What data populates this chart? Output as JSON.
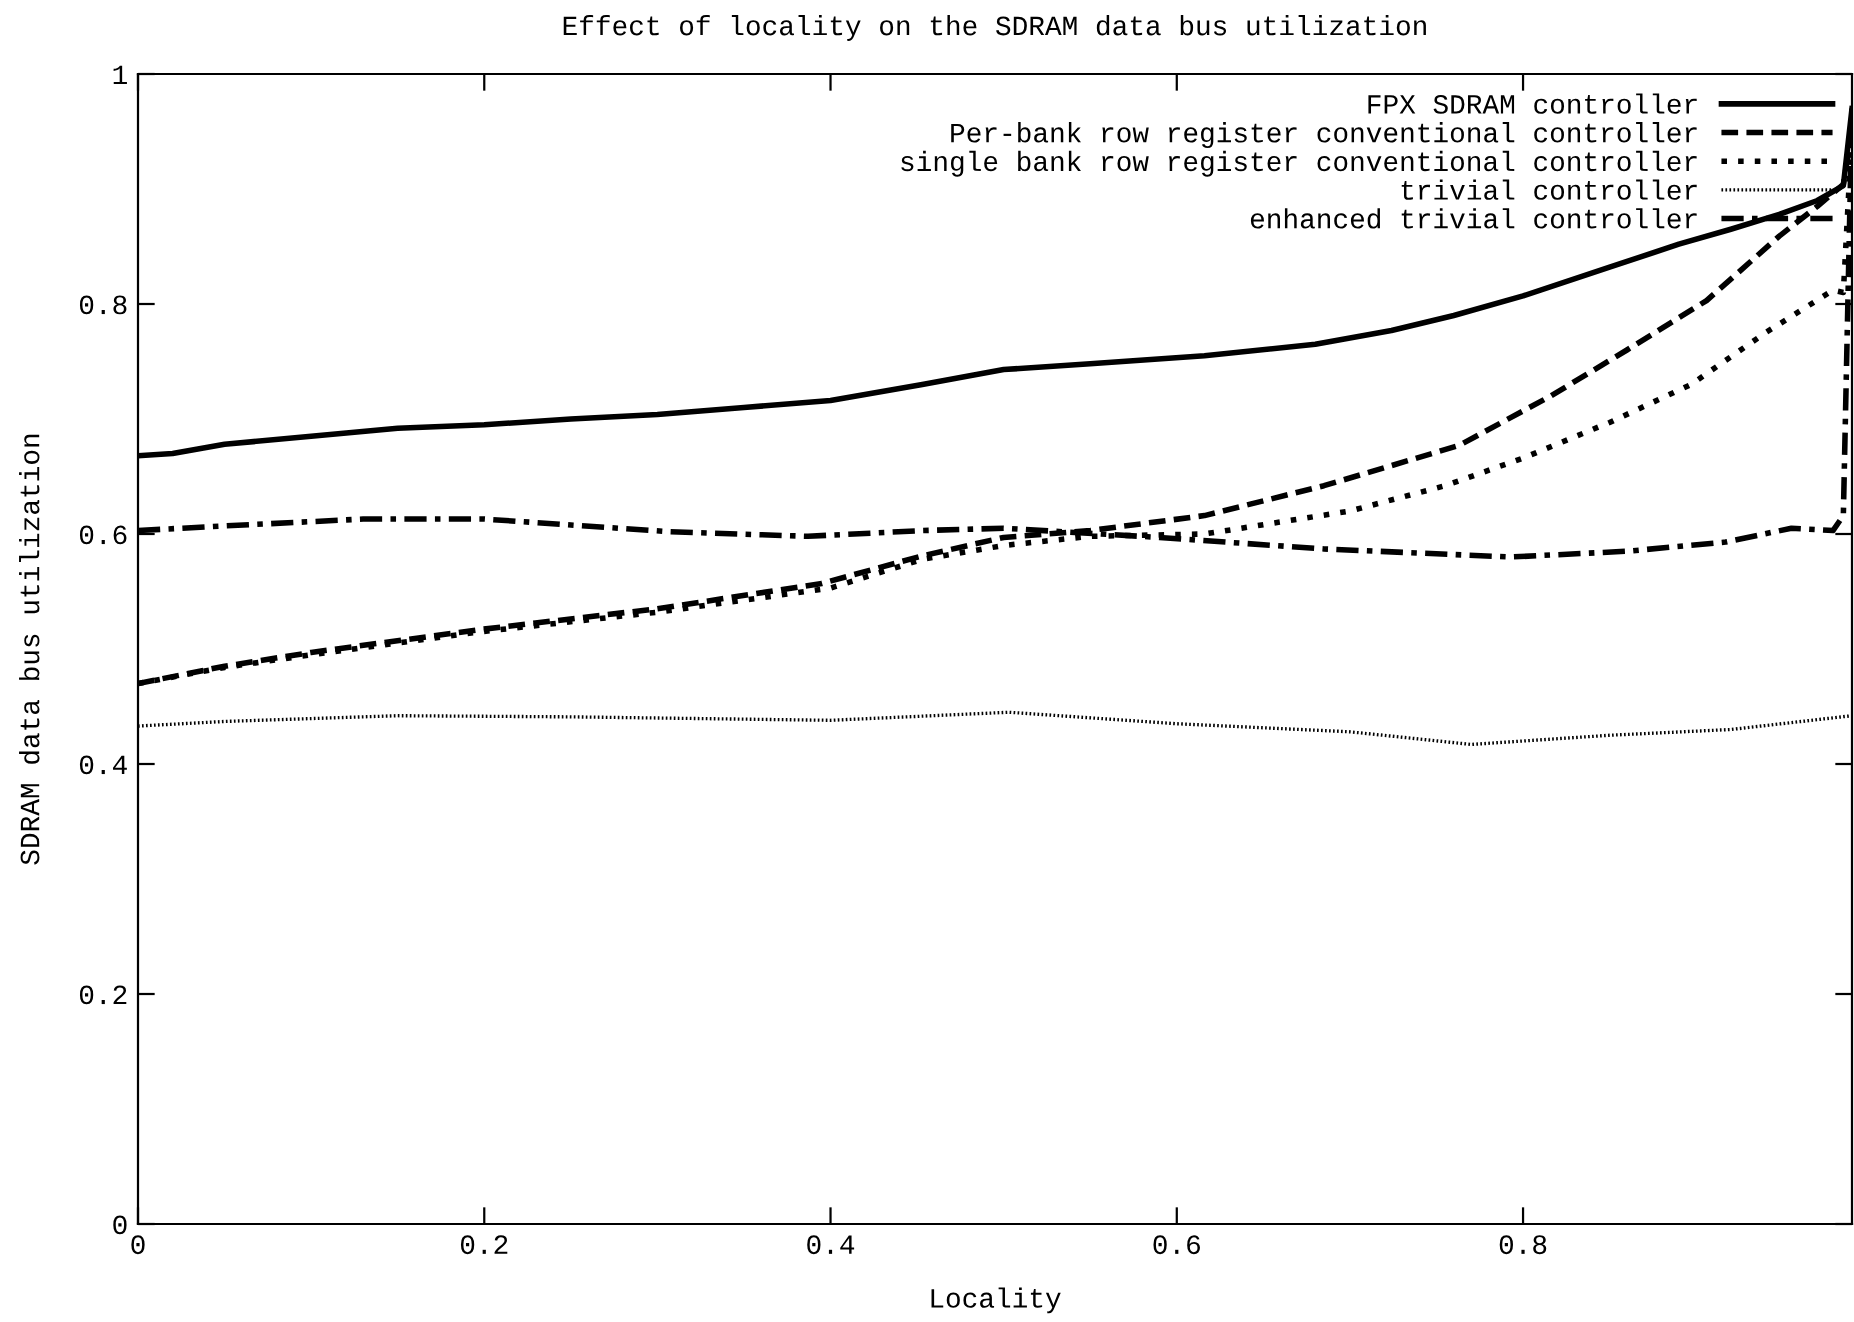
{
  "chart_data": {
    "type": "line",
    "title": "Effect of locality on the SDRAM data bus utilization",
    "xlabel": "Locality",
    "ylabel": "SDRAM data bus utilization",
    "xlim": [
      0,
      0.99
    ],
    "xticks": [
      0,
      0.2,
      0.4,
      0.6,
      0.8
    ],
    "ylim": [
      0,
      1
    ],
    "yticks": [
      0,
      0.2,
      0.4,
      0.6,
      0.8,
      1
    ],
    "grid": false,
    "legend": "top right",
    "marker": "none",
    "series": [
      {
        "name": "FPX SDRAM controller",
        "color": "#000000",
        "line_style": "solid",
        "x": [
          0,
          0.02,
          0.05,
          0.1,
          0.15,
          0.2,
          0.25,
          0.3,
          0.35,
          0.4,
          0.453,
          0.5,
          0.55,
          0.616,
          0.68,
          0.724,
          0.76,
          0.8,
          0.85,
          0.89,
          0.92,
          0.948,
          0.97,
          0.985,
          0.99
        ],
        "values": [
          0.668,
          0.67,
          0.678,
          0.685,
          0.692,
          0.695,
          0.7,
          0.704,
          0.71,
          0.716,
          0.73,
          0.743,
          0.748,
          0.755,
          0.765,
          0.777,
          0.79,
          0.807,
          0.832,
          0.852,
          0.865,
          0.878,
          0.89,
          0.903,
          0.97
        ]
      },
      {
        "name": "Per-bank row register conventional controller",
        "color": "#000000",
        "line_style": "dashed",
        "x": [
          0,
          0.05,
          0.1,
          0.198,
          0.3,
          0.395,
          0.453,
          0.5,
          0.55,
          0.616,
          0.685,
          0.763,
          0.816,
          0.86,
          0.906,
          0.948,
          0.97,
          0.985,
          0.99
        ],
        "values": [
          0.47,
          0.485,
          0.497,
          0.517,
          0.535,
          0.557,
          0.581,
          0.597,
          0.603,
          0.616,
          0.642,
          0.677,
          0.72,
          0.76,
          0.803,
          0.859,
          0.885,
          0.904,
          0.95
        ]
      },
      {
        "name": "single bank row register conventional controller",
        "color": "#000000",
        "line_style": "dotted",
        "x": [
          0,
          0.05,
          0.1,
          0.198,
          0.3,
          0.4,
          0.453,
          0.5,
          0.55,
          0.616,
          0.7,
          0.755,
          0.8,
          0.85,
          0.897,
          0.94,
          0.979,
          0.985,
          0.99
        ],
        "values": [
          0.47,
          0.484,
          0.495,
          0.515,
          0.532,
          0.553,
          0.578,
          0.59,
          0.598,
          0.6,
          0.62,
          0.642,
          0.666,
          0.697,
          0.73,
          0.775,
          0.812,
          0.81,
          0.95
        ]
      },
      {
        "name": "trivial controller",
        "color": "#000000",
        "line_style": "finedotted",
        "x": [
          0,
          0.05,
          0.15,
          0.25,
          0.4,
          0.503,
          0.6,
          0.7,
          0.77,
          0.85,
          0.92,
          0.99
        ],
        "values": [
          0.433,
          0.437,
          0.442,
          0.441,
          0.438,
          0.445,
          0.435,
          0.428,
          0.417,
          0.425,
          0.43,
          0.442
        ]
      },
      {
        "name": "enhanced trivial controller",
        "color": "#000000",
        "line_style": "dashdot",
        "x": [
          0,
          0.05,
          0.13,
          0.2,
          0.307,
          0.387,
          0.453,
          0.5,
          0.59,
          0.685,
          0.793,
          0.86,
          0.917,
          0.955,
          0.979,
          0.985,
          0.99
        ],
        "values": [
          0.603,
          0.607,
          0.613,
          0.613,
          0.602,
          0.598,
          0.603,
          0.605,
          0.597,
          0.587,
          0.58,
          0.585,
          0.593,
          0.605,
          0.603,
          0.616,
          0.97
        ]
      }
    ]
  }
}
